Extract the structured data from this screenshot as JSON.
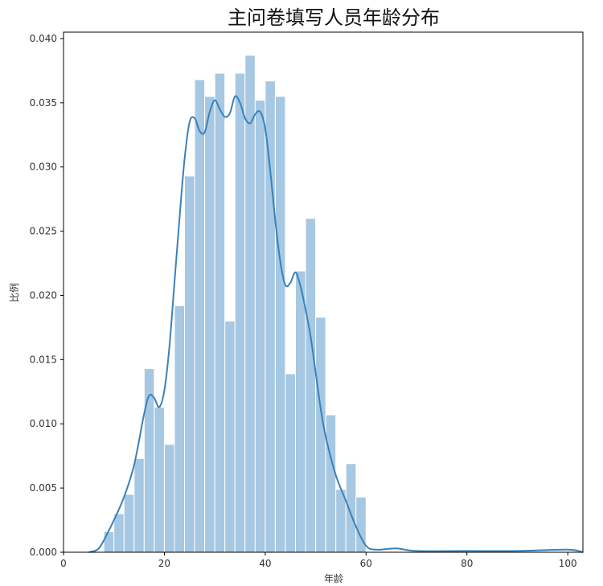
{
  "chart_data": {
    "type": "bar",
    "title": "主问卷填写人员年龄分布",
    "xlabel": "年龄",
    "ylabel": "比例",
    "xlim": [
      0,
      103
    ],
    "ylim": [
      0,
      0.0405
    ],
    "x_ticks": [
      0,
      20,
      40,
      60,
      80,
      100
    ],
    "x_tick_labels": [
      "0",
      "20",
      "40",
      "60",
      "80",
      "100"
    ],
    "y_ticks": [
      0,
      0.005,
      0.01,
      0.015,
      0.02,
      0.025,
      0.03,
      0.035,
      0.04
    ],
    "y_tick_labels": [
      "0.000",
      "0.005",
      "0.010",
      "0.015",
      "0.020",
      "0.025",
      "0.030",
      "0.035",
      "0.040"
    ],
    "grid": false,
    "bar_color": "#a6c8e2",
    "bar_edge_color": "#ffffff",
    "line_color": "#3a81ba",
    "histogram": {
      "bin_edges": [
        8,
        10,
        12,
        14,
        16,
        18,
        20,
        22,
        24,
        26,
        28,
        30,
        32,
        34,
        36,
        38,
        40,
        42,
        44,
        46,
        48,
        50,
        52,
        54,
        56,
        58,
        60
      ],
      "values": [
        0.0016,
        0.003,
        0.0045,
        0.0073,
        0.0143,
        0.0113,
        0.0084,
        0.0192,
        0.0293,
        0.0368,
        0.0355,
        0.0373,
        0.018,
        0.0373,
        0.0387,
        0.0352,
        0.0367,
        0.0355,
        0.0139,
        0.0219,
        0.026,
        0.0183,
        0.0107,
        0.0049,
        0.0069,
        0.0043
      ]
    },
    "kde": {
      "x": [
        5,
        7,
        9,
        10,
        12,
        14,
        16,
        17,
        18,
        19,
        20,
        21,
        22,
        23,
        24,
        25,
        26,
        27,
        28,
        29,
        30,
        31,
        32,
        33,
        34,
        35,
        36,
        37,
        38,
        39,
        40,
        41,
        42,
        43,
        44,
        45,
        46,
        47,
        48,
        49,
        50,
        51,
        52,
        54,
        56,
        58,
        60,
        62,
        66,
        70,
        80,
        90,
        100,
        103
      ],
      "y": [
        0.0,
        0.0003,
        0.0017,
        0.0025,
        0.0043,
        0.0068,
        0.0108,
        0.0122,
        0.012,
        0.0113,
        0.0126,
        0.016,
        0.021,
        0.026,
        0.0306,
        0.0335,
        0.0338,
        0.0328,
        0.0327,
        0.0343,
        0.0352,
        0.0345,
        0.0339,
        0.0342,
        0.0355,
        0.035,
        0.0338,
        0.0334,
        0.0341,
        0.0343,
        0.033,
        0.0297,
        0.0258,
        0.0226,
        0.0208,
        0.021,
        0.0218,
        0.0207,
        0.0189,
        0.0168,
        0.014,
        0.0112,
        0.009,
        0.006,
        0.004,
        0.002,
        0.0005,
        0.0002,
        0.0003,
        0.0001,
        0.0001,
        0.0001,
        0.0002,
        0.0
      ]
    }
  }
}
